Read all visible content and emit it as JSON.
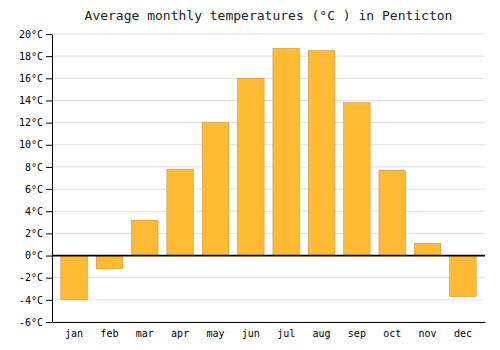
{
  "chart_data": {
    "type": "bar",
    "title": "Average monthly temperatures (°C ) in Penticton",
    "categories": [
      "jan",
      "feb",
      "mar",
      "apr",
      "may",
      "jun",
      "jul",
      "aug",
      "sep",
      "oct",
      "nov",
      "dec"
    ],
    "values": [
      -4.0,
      -1.2,
      3.2,
      7.8,
      12.0,
      16.0,
      18.7,
      18.5,
      13.8,
      7.7,
      1.1,
      -3.7
    ],
    "color": "#FFBB33",
    "ylim": [
      -6,
      20
    ],
    "yticks": [
      {
        "value": -6,
        "label": "-6°C"
      },
      {
        "value": -4,
        "label": "-4°C"
      },
      {
        "value": -2,
        "label": "-2°C"
      },
      {
        "value": 0,
        "label": "0°C"
      },
      {
        "value": 2,
        "label": "2°C"
      },
      {
        "value": 4,
        "label": "4°C"
      },
      {
        "value": 6,
        "label": "6°C"
      },
      {
        "value": 8,
        "label": "8°C"
      },
      {
        "value": 10,
        "label": "10°C"
      },
      {
        "value": 12,
        "label": "12°C"
      },
      {
        "value": 14,
        "label": "14°C"
      },
      {
        "value": 16,
        "label": "16°C"
      },
      {
        "value": 18,
        "label": "18°C"
      },
      {
        "value": 20,
        "label": "20°C"
      }
    ],
    "grid": true
  }
}
